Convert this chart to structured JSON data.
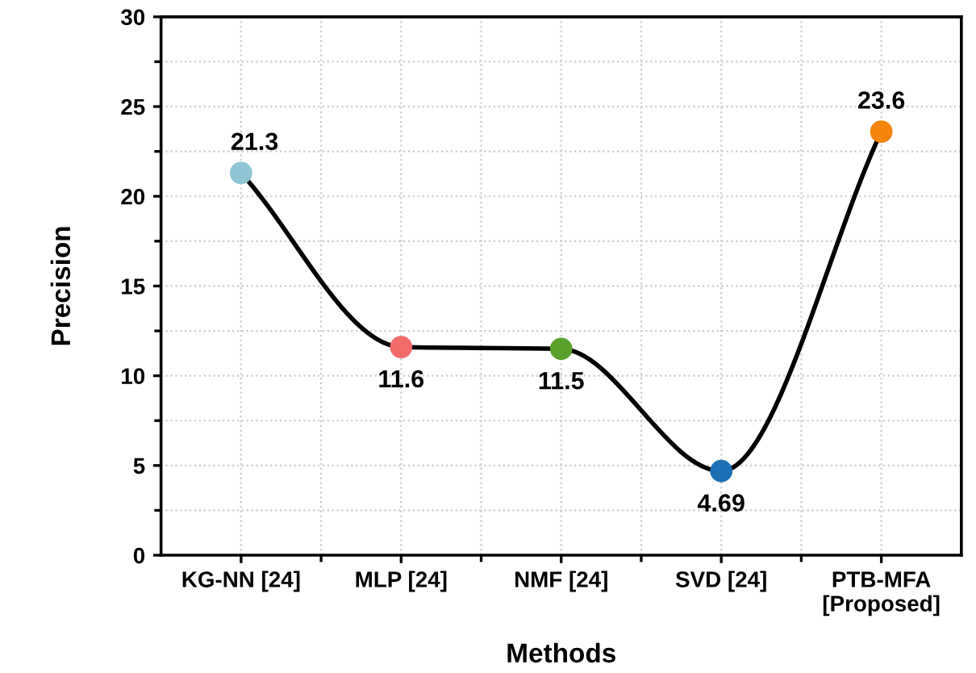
{
  "chart_data": {
    "type": "line",
    "xlabel": "Methods",
    "ylabel": "Precision",
    "categories": [
      "KG-NN [24]",
      "MLP [24]",
      "NMF [24]",
      "SVD [24]",
      "PTB-MFA\n[Proposed]"
    ],
    "series": [
      {
        "color": "#000000",
        "colors": [
          "#8fc4d4",
          "#f26b6b",
          "#5aa02c",
          "#1f6fb4",
          "#f5840c"
        ],
        "values": [
          21.3,
          11.6,
          11.5,
          4.69,
          23.6
        ]
      }
    ],
    "ylim": [
      0,
      30
    ],
    "yticks": [
      0,
      5,
      10,
      15,
      20,
      25,
      30
    ],
    "grid": true,
    "marker": "circle",
    "data_labels": true
  }
}
